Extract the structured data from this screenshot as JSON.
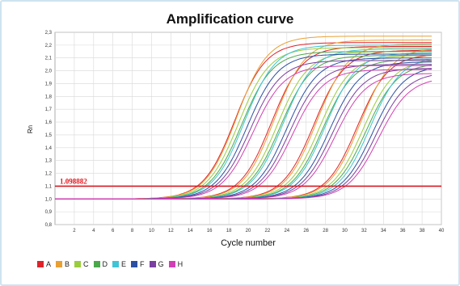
{
  "chart_data": {
    "type": "line",
    "title": "Amplification curve",
    "xlabel": "Cycle number",
    "ylabel": "Rn",
    "xlim": [
      0,
      40
    ],
    "ylim": [
      0.8,
      2.3
    ],
    "xticks": [
      "2",
      "4",
      "6",
      "8",
      "10",
      "12",
      "14",
      "16",
      "18",
      "20",
      "22",
      "24",
      "26",
      "28",
      "30",
      "32",
      "34",
      "36",
      "38",
      "40"
    ],
    "yticks": [
      "0,8",
      "0,9",
      "1,0",
      "1,1",
      "1,2",
      "1,3",
      "1,4",
      "1,5",
      "1,6",
      "1,7",
      "1,8",
      "1,9",
      "2,0",
      "2,1",
      "2,2",
      "2,3"
    ],
    "grid": true,
    "threshold": {
      "value": 1.1,
      "label": "1.098882"
    },
    "legend_position": "bottom-left",
    "series": [
      {
        "name": "A",
        "color": "#e0232a",
        "baseline": 1.0,
        "plateau": 2.22,
        "ct": [
          15.6,
          19.4,
          23.8,
          28.3
        ]
      },
      {
        "name": "B",
        "color": "#e8a033",
        "baseline": 1.0,
        "plateau": 2.27,
        "ct": [
          15.8,
          19.7,
          24.1,
          28.6
        ]
      },
      {
        "name": "C",
        "color": "#9acd3c",
        "baseline": 1.0,
        "plateau": 2.18,
        "ct": [
          16.0,
          20.0,
          24.4,
          28.9
        ]
      },
      {
        "name": "D",
        "color": "#4aa84a",
        "baseline": 1.0,
        "plateau": 2.15,
        "ct": [
          16.3,
          20.3,
          24.7,
          29.2
        ]
      },
      {
        "name": "E",
        "color": "#3fc4d6",
        "baseline": 1.0,
        "plateau": 2.2,
        "ct": [
          16.6,
          20.6,
          25.0,
          29.6
        ]
      },
      {
        "name": "F",
        "color": "#2a4fa3",
        "baseline": 1.0,
        "plateau": 2.13,
        "ct": [
          16.9,
          21.0,
          25.4,
          29.9
        ]
      },
      {
        "name": "G",
        "color": "#7a3fa0",
        "baseline": 1.0,
        "plateau": 2.08,
        "ct": [
          17.2,
          21.3,
          25.7,
          30.2
        ]
      },
      {
        "name": "H",
        "color": "#d23fb4",
        "baseline": 1.0,
        "plateau": 2.04,
        "ct": [
          17.5,
          21.6,
          26.0,
          30.5
        ]
      }
    ]
  }
}
